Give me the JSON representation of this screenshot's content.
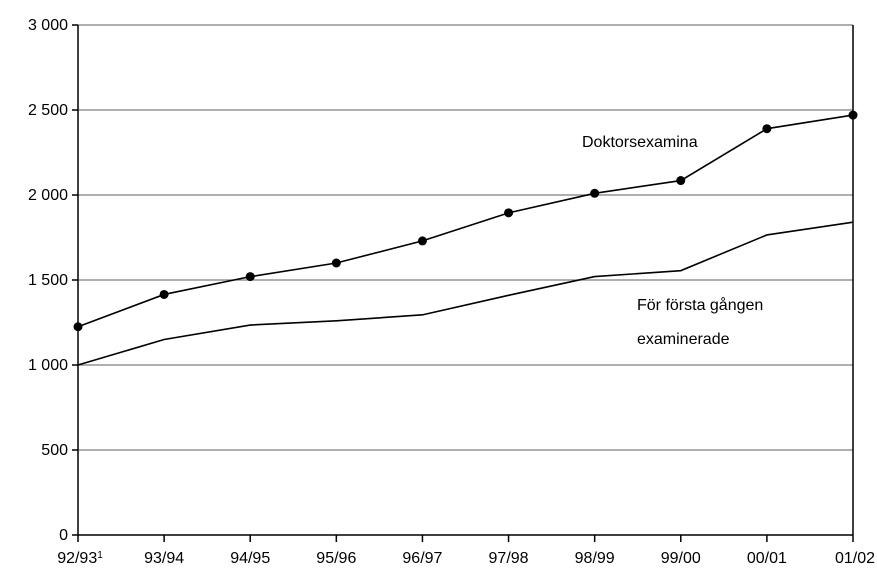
{
  "chart_data": {
    "type": "line",
    "title": "",
    "xlabel": "",
    "ylabel": "",
    "categories": [
      "92/93",
      "93/94",
      "94/95",
      "95/96",
      "96/97",
      "97/98",
      "98/99",
      "99/00",
      "00/01",
      "01/02"
    ],
    "category_superscripts": [
      "1",
      "",
      "",
      "",
      "",
      "",
      "",
      "",
      "",
      ""
    ],
    "ylim": [
      0,
      3000
    ],
    "yticks": [
      0,
      500,
      1000,
      1500,
      2000,
      2500,
      3000
    ],
    "ytick_labels": [
      "0",
      "500",
      "1 000",
      "1 500",
      "2 000",
      "2 500",
      "3 000"
    ],
    "grid": true,
    "series": [
      {
        "name": "Doktorsexamina",
        "markers": true,
        "values": [
          1225,
          1415,
          1520,
          1600,
          1730,
          1895,
          2010,
          2085,
          2390,
          2470
        ]
      },
      {
        "name": "För första gången examinerade",
        "name_lines": [
          "För första gången",
          "examinerade"
        ],
        "markers": false,
        "values": [
          1000,
          1150,
          1235,
          1260,
          1295,
          1410,
          1520,
          1555,
          1765,
          1840
        ]
      }
    ],
    "colors": {
      "line": "#000000",
      "grid": "#7f7f7f",
      "axis": "#000000",
      "background": "#ffffff"
    }
  }
}
